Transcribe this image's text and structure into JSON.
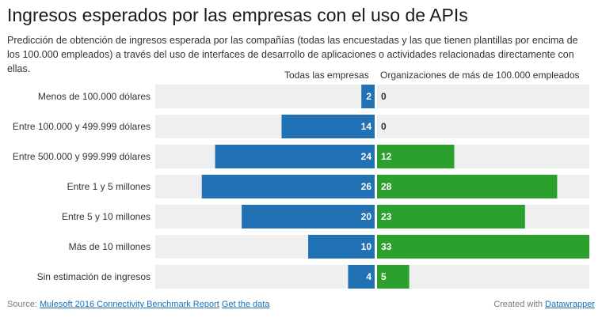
{
  "title": "Ingresos esperados por las empresas con el uso de APIs",
  "subtitle": "Predicción de obtención de ingresos esperada por las compañías (todas las encuestadas y las que tienen plantillas por encima de los 100.000 empleados) a través del uso de interfaces de desarrollo de aplicaciones o actividades relacionadas directamente con ellas.",
  "footer": {
    "source_label": "Source:",
    "source_link": "Mulesoft 2016 Connectivity Benchmark Report",
    "data_link": "Get the data",
    "credit_label": "Created with",
    "credit_link": "Datawrapper"
  },
  "colors": {
    "left_bar": "#2171b5",
    "right_bar": "#2ca02c",
    "track": "#efefef",
    "left_text": "#ffffff",
    "right_text": "#ffffff",
    "zero_text": "#333333"
  },
  "chart_data": {
    "type": "bar",
    "orientation": "horizontal-diverging",
    "categories": [
      "Menos de 100.000 dólares",
      "Entre 100.000 y 499.999 dólares",
      "Entre 500.000 y 999.999 dólares",
      "Entre 1 y 5 millones",
      "Entre 5 y 10 millones",
      "Más de 10 millones",
      "Sin estimación de ingresos"
    ],
    "series": [
      {
        "name": "Todas las empresas",
        "values": [
          2,
          14,
          24,
          26,
          20,
          10,
          4
        ]
      },
      {
        "name": "Organizaciones de más de 100.000 empleados",
        "values": [
          0,
          0,
          12,
          28,
          23,
          33,
          5
        ]
      }
    ],
    "xlim": [
      0,
      33
    ]
  }
}
